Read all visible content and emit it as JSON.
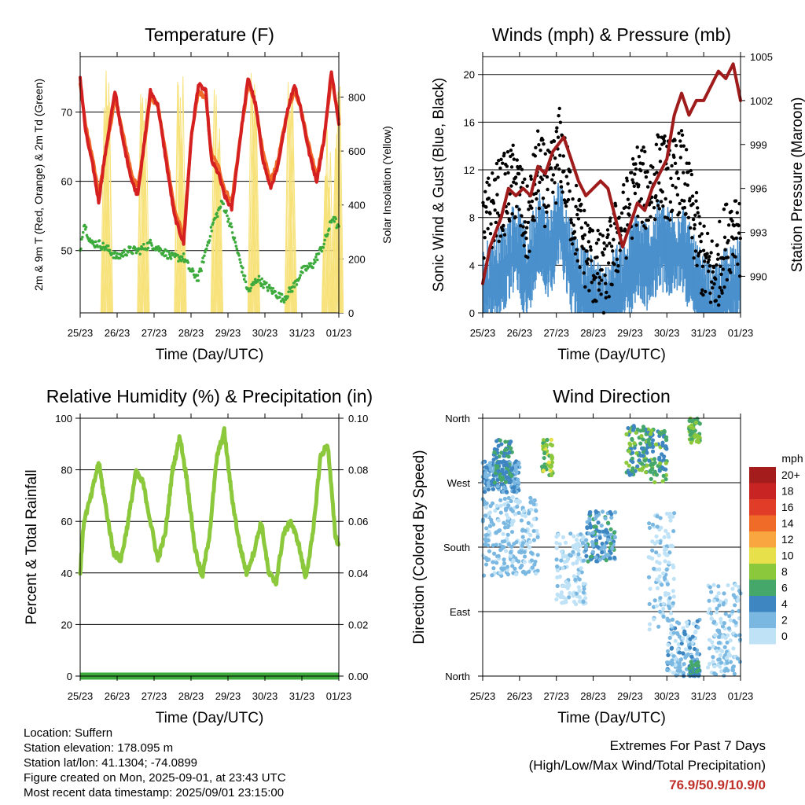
{
  "info": {
    "location": "Location: Suffern",
    "elevation": "Station elevation: 178.095 m",
    "latlon": "Station lat/lon: 41.1304; -74.0899",
    "created": "Figure created on Mon, 2025-09-01, at 23:43 UTC",
    "recent": "Most recent data timestamp: 2025/09/01 23:15:00"
  },
  "extremes": {
    "line1": "Extremes For Past 7 Days",
    "line2": "(High/Low/Max Wind/Total Precipitation)",
    "values": "76.9/50.9/10.9/0"
  },
  "colors": {
    "temp2m": "#d42020",
    "temp9m": "#f06a28",
    "dewpoint": "#3cab3c",
    "solar": "#f7e27a",
    "gust": "#000000",
    "sonic": "#4a90cc",
    "pressure": "#a01c1c",
    "humidity": "#8cc83c",
    "precip": "#3cab3c",
    "extreme_values": "#c0302a"
  },
  "chart_data": [
    {
      "type": "line",
      "title": "Temperature (F)",
      "xlabel": "Time (Day/UTC)",
      "ylabel": "2m & 9m T (Red, Orange) & 2m Td (Green)",
      "y2label": "Solar Insolation (Yellow)",
      "x_ticks": [
        "25/23",
        "26/23",
        "27/23",
        "28/23",
        "29/23",
        "30/23",
        "31/23",
        "01/23"
      ],
      "xlim": [
        0,
        7
      ],
      "ylim": [
        41,
        78
      ],
      "yticks": [
        50,
        60,
        70
      ],
      "y2lim": [
        0,
        950
      ],
      "y2ticks": [
        0,
        200,
        400,
        600,
        800
      ],
      "grid": "horizontal",
      "series": [
        {
          "key": "t2m",
          "axis": "left",
          "x": [
            0,
            0.15,
            0.35,
            0.5,
            0.65,
            0.85,
            0.95,
            1.15,
            1.4,
            1.55,
            1.7,
            1.9,
            2.1,
            2.35,
            2.55,
            2.8,
            3.0,
            3.2,
            3.4,
            3.55,
            3.75,
            3.9,
            4.1,
            4.35,
            4.55,
            4.75,
            4.95,
            5.15,
            5.35,
            5.6,
            5.8,
            5.95,
            6.2,
            6.4,
            6.6,
            6.8,
            7.0
          ],
          "y": [
            75,
            67,
            62,
            57,
            63,
            70,
            73,
            66,
            60,
            58,
            64,
            73,
            71,
            62,
            55,
            51,
            66,
            74,
            73,
            63,
            61,
            58,
            56,
            67,
            75,
            71,
            63,
            59,
            62,
            70,
            74,
            71,
            64,
            60,
            66,
            76,
            68
          ]
        },
        {
          "key": "t9m",
          "axis": "left",
          "x": [
            0,
            0.15,
            0.35,
            0.5,
            0.65,
            0.85,
            0.95,
            1.15,
            1.4,
            1.55,
            1.7,
            1.9,
            2.1,
            2.35,
            2.55,
            2.8,
            3.0,
            3.2,
            3.4,
            3.55,
            3.75,
            3.9,
            4.1,
            4.35,
            4.55,
            4.75,
            4.95,
            5.15,
            5.35,
            5.6,
            5.8,
            5.95,
            6.2,
            6.4,
            6.6,
            6.8,
            7.0
          ],
          "y": [
            74,
            68,
            63,
            58,
            63,
            69,
            72,
            67,
            61,
            59,
            64,
            72,
            71,
            63,
            56,
            52,
            66,
            73,
            72,
            64,
            62,
            59,
            57,
            67,
            74,
            71,
            64,
            60,
            63,
            70,
            73,
            71,
            65,
            61,
            66,
            75,
            69
          ]
        },
        {
          "key": "td",
          "axis": "left",
          "x": [
            0,
            0.1,
            0.3,
            0.5,
            0.8,
            1.0,
            1.3,
            1.6,
            1.9,
            2.2,
            2.5,
            2.8,
            3.0,
            3.2,
            3.4,
            3.6,
            3.85,
            4.05,
            4.3,
            4.55,
            4.8,
            5.0,
            5.25,
            5.5,
            5.8,
            6.0,
            6.3,
            6.6,
            6.85,
            7.0
          ],
          "y": [
            50,
            54,
            51,
            51,
            50,
            49,
            50,
            50,
            51,
            50,
            49,
            49,
            47,
            46,
            50,
            54,
            57,
            54,
            49,
            44,
            46,
            45,
            44,
            43,
            45,
            47,
            48,
            51,
            55,
            53
          ]
        },
        {
          "key": "solar",
          "axis": "right",
          "peaks": [
            0.72,
            1.71,
            2.71,
            3.7,
            4.7,
            5.7,
            6.7,
            6.96
          ],
          "peak_values": [
            900,
            880,
            910,
            880,
            900,
            920,
            700,
            900
          ]
        }
      ]
    },
    {
      "type": "scatter",
      "title": "Winds (mph) & Pressure (mb)",
      "xlabel": "Time (Day/UTC)",
      "ylabel": "Sonic Wind & Gust (Blue, Black)",
      "y2label": "Station Pressure (Maroon)",
      "x_ticks": [
        "25/23",
        "26/23",
        "27/23",
        "28/23",
        "29/23",
        "30/23",
        "31/23",
        "01/23"
      ],
      "xlim": [
        0,
        7
      ],
      "ylim": [
        0,
        21.5
      ],
      "yticks": [
        0,
        4,
        8,
        12,
        16,
        20
      ],
      "y2lim": [
        987.5,
        1005
      ],
      "y2ticks": [
        990,
        993,
        996,
        999,
        1002,
        1005
      ],
      "grid": "horizontal",
      "series": [
        {
          "key": "pressure",
          "axis": "right",
          "x": [
            0,
            0.2,
            0.5,
            0.7,
            0.9,
            1.1,
            1.3,
            1.5,
            1.7,
            1.9,
            2.2,
            2.4,
            2.6,
            2.8,
            3.0,
            3.2,
            3.4,
            3.6,
            3.8,
            4.0,
            4.2,
            4.4,
            4.6,
            4.8,
            5.0,
            5.2,
            5.4,
            5.6,
            5.8,
            6.0,
            6.2,
            6.4,
            6.6,
            6.8,
            7.0
          ],
          "y": [
            989.5,
            992,
            994,
            996,
            995.5,
            996,
            995.5,
            997.5,
            997,
            998.5,
            999.5,
            998,
            996.5,
            995.5,
            996,
            996.5,
            996,
            994,
            992,
            993.5,
            995,
            994.5,
            996,
            997,
            998,
            1001,
            1002.5,
            1001,
            1002,
            1002,
            1003,
            1004,
            1003.5,
            1004.5,
            1002
          ]
        },
        {
          "key": "sonic_mean",
          "axis": "left",
          "x": [
            0,
            0.3,
            0.6,
            0.9,
            1.2,
            1.5,
            1.8,
            2.1,
            2.4,
            2.7,
            3.0,
            3.3,
            3.6,
            3.9,
            4.2,
            4.5,
            4.8,
            5.1,
            5.4,
            5.7,
            6.0,
            6.3,
            6.6,
            6.9,
            7.0
          ],
          "y": [
            3,
            4,
            5,
            7,
            4,
            8,
            6,
            9,
            5,
            3,
            2,
            1,
            3,
            4,
            6,
            5,
            7,
            6,
            7,
            4,
            2,
            1,
            3,
            4,
            3
          ]
        },
        {
          "key": "gust_mean",
          "axis": "left",
          "x": [
            0,
            0.3,
            0.6,
            0.9,
            1.2,
            1.5,
            1.8,
            2.1,
            2.4,
            2.7,
            3.0,
            3.3,
            3.6,
            3.9,
            4.2,
            4.5,
            4.8,
            5.1,
            5.4,
            5.7,
            6.0,
            6.3,
            6.6,
            6.9,
            7.0
          ],
          "y": [
            7,
            9,
            10,
            11,
            7,
            12,
            10,
            14,
            9,
            6,
            4,
            3,
            6,
            8,
            11,
            10,
            12,
            11,
            12,
            8,
            4,
            3,
            6,
            8,
            6
          ]
        }
      ]
    },
    {
      "type": "line",
      "title": "Relative Humidity (%) & Precipitation (in)",
      "xlabel": "Time (Day/UTC)",
      "ylabel": "Percent & Total Rainfall",
      "x_ticks": [
        "25/23",
        "26/23",
        "27/23",
        "28/23",
        "29/23",
        "30/23",
        "31/23",
        "01/23"
      ],
      "xlim": [
        0,
        7
      ],
      "ylim": [
        0,
        100
      ],
      "yticks": [
        0,
        20,
        40,
        60,
        80,
        100
      ],
      "y2lim": [
        0,
        0.1
      ],
      "y2ticks": [
        "0.00",
        "0.02",
        "0.04",
        "0.06",
        "0.08",
        "0.10"
      ],
      "grid": "horizontal",
      "series": [
        {
          "key": "rh",
          "axis": "left",
          "x": [
            0,
            0.1,
            0.3,
            0.5,
            0.7,
            0.9,
            1.1,
            1.3,
            1.5,
            1.7,
            1.9,
            2.1,
            2.3,
            2.5,
            2.7,
            2.9,
            3.1,
            3.3,
            3.5,
            3.7,
            3.9,
            4.1,
            4.3,
            4.5,
            4.7,
            4.9,
            5.1,
            5.3,
            5.5,
            5.7,
            5.9,
            6.1,
            6.3,
            6.5,
            6.7,
            6.9,
            7.0
          ],
          "y": [
            40,
            60,
            70,
            83,
            65,
            48,
            45,
            60,
            79,
            75,
            60,
            45,
            55,
            80,
            93,
            75,
            50,
            38,
            55,
            85,
            95,
            70,
            52,
            40,
            48,
            60,
            40,
            36,
            55,
            60,
            52,
            38,
            55,
            85,
            90,
            55,
            50
          ]
        },
        {
          "key": "precip",
          "axis": "right",
          "x": [
            0,
            7
          ],
          "y": [
            0,
            0
          ]
        }
      ]
    },
    {
      "type": "scatter",
      "title": "Wind Direction",
      "xlabel": "Time (Day/UTC)",
      "ylabel": "Direction (Colored By Speed)",
      "x_ticks": [
        "25/23",
        "26/23",
        "27/23",
        "28/23",
        "29/23",
        "30/23",
        "31/23",
        "01/23"
      ],
      "xlim": [
        0,
        7
      ],
      "ylim": [
        0,
        360
      ],
      "ytick_labels": [
        "North",
        "East",
        "South",
        "West",
        "North"
      ],
      "grid": "horizontal",
      "legend": {
        "title": "mph",
        "placement": "right",
        "labels": [
          "20+",
          "18",
          "16",
          "14",
          "12",
          "10",
          "8",
          "6",
          "4",
          "2",
          "0"
        ],
        "colors": [
          "#a51c1c",
          "#c82424",
          "#e03c28",
          "#f06a28",
          "#f9a640",
          "#e8e04a",
          "#8cc83c",
          "#45a86a",
          "#3e86c2",
          "#7ab8e2",
          "#bfe2f6"
        ]
      },
      "clusters": [
        {
          "x": [
            0,
            1.0
          ],
          "dir": [
            255,
            300
          ],
          "speed": [
            2,
            6
          ]
        },
        {
          "x": [
            0.3,
            0.8
          ],
          "dir": [
            270,
            330
          ],
          "speed": [
            4,
            8
          ]
        },
        {
          "x": [
            1.6,
            1.9
          ],
          "dir": [
            280,
            330
          ],
          "speed": [
            6,
            11
          ]
        },
        {
          "x": [
            0.0,
            1.5
          ],
          "dir": [
            140,
            250
          ],
          "speed": [
            1,
            4
          ]
        },
        {
          "x": [
            2.0,
            2.8
          ],
          "dir": [
            100,
            200
          ],
          "speed": [
            0,
            3
          ]
        },
        {
          "x": [
            2.8,
            3.6
          ],
          "dir": [
            160,
            230
          ],
          "speed": [
            2,
            7
          ]
        },
        {
          "x": [
            3.9,
            4.5
          ],
          "dir": [
            280,
            350
          ],
          "speed": [
            4,
            9
          ]
        },
        {
          "x": [
            4.5,
            5.0
          ],
          "dir": [
            270,
            345
          ],
          "speed": [
            4,
            9
          ]
        },
        {
          "x": [
            5.6,
            5.9
          ],
          "dir": [
            325,
            360
          ],
          "speed": [
            6,
            10
          ]
        },
        {
          "x": [
            5.0,
            5.9
          ],
          "dir": [
            0,
            80
          ],
          "speed": [
            1,
            5
          ]
        },
        {
          "x": [
            5.6,
            5.9
          ],
          "dir": [
            0,
            20
          ],
          "speed": [
            5,
            8
          ]
        },
        {
          "x": [
            6.1,
            7.0
          ],
          "dir": [
            0,
            130
          ],
          "speed": [
            0,
            4
          ]
        },
        {
          "x": [
            4.5,
            5.2
          ],
          "dir": [
            60,
            230
          ],
          "speed": [
            0,
            3
          ]
        }
      ]
    }
  ]
}
